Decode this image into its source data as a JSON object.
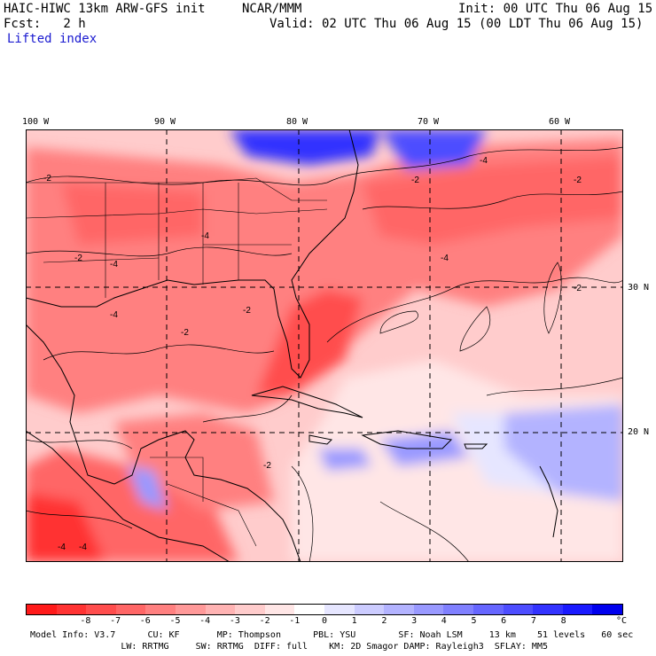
{
  "header": {
    "model": "HAIC-HIWC 13km ARW-GFS init",
    "org": "NCAR/MMM",
    "init": "Init: 00 UTC Thu 06 Aug 15",
    "fcst": "Fcst:   2 h",
    "valid": "Valid: 02 UTC Thu 06 Aug 15 (00 LDT Thu 06 Aug 15)",
    "field": "Lifted index"
  },
  "axes": {
    "lon_labels": [
      "100 W",
      "90 W",
      "80 W",
      "70 W",
      "60 W"
    ],
    "lat_labels": [
      "30 N",
      "20 N"
    ]
  },
  "colorbar": {
    "labels": [
      "-8",
      "-7",
      "-6",
      "-5",
      "-4",
      "-3",
      "-2",
      "-1",
      "0",
      "1",
      "2",
      "3",
      "4",
      "5",
      "6",
      "7",
      "8"
    ],
    "unit": "°C",
    "colors": [
      "#ff1a1a",
      "#ff3333",
      "#ff4d4d",
      "#ff6666",
      "#ff8080",
      "#ff9999",
      "#ffb3b3",
      "#ffcccc",
      "#ffe6e6",
      "#ffffff",
      "#e6e6ff",
      "#ccccff",
      "#b3b3ff",
      "#9999ff",
      "#8080ff",
      "#6666ff",
      "#4d4dff",
      "#3333ff",
      "#1a1aff",
      "#0000ee"
    ]
  },
  "map_contours": [
    "-2",
    "-4",
    "-2",
    "-4",
    "-2",
    "-2",
    "-4",
    "-2",
    "-4",
    "-2",
    "-4",
    "-2",
    "-2",
    "-4",
    "-4"
  ],
  "model_info": {
    "line1": "Model Info: V3.7      CU: KF       MP: Thompson      PBL: YSU        SF: Noah LSM     13 km    51 levels   60 sec",
    "line2": "                 LW: RRTMG     SW: RRTMG  DIFF: full    KM: 2D Smagor DAMP: Rayleigh3  SFLAY: MM5"
  }
}
